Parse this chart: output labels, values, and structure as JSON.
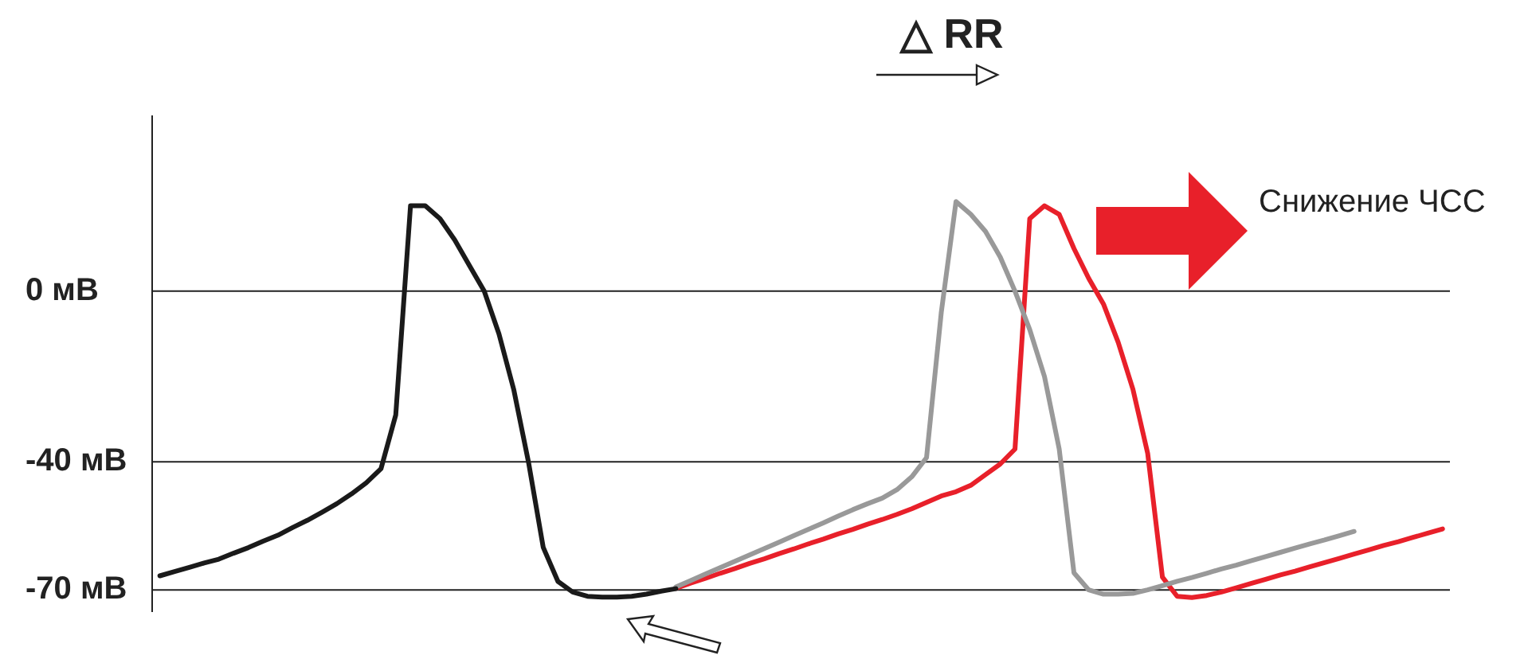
{
  "chart_data": {
    "type": "line",
    "categories": [
      null,
      null,
      null,
      null,
      null,
      null,
      null,
      null,
      null,
      null,
      null,
      null,
      null,
      null,
      null,
      null,
      null,
      null,
      null,
      null,
      null,
      null,
      null,
      null,
      null,
      null,
      null,
      null,
      null,
      null,
      null,
      null,
      null,
      null,
      null,
      null,
      null,
      null,
      null,
      null,
      null,
      null,
      null,
      null,
      null,
      null,
      null,
      null,
      null,
      null,
      null,
      null,
      null,
      null,
      null,
      null,
      null,
      null,
      null,
      null,
      null,
      null,
      null,
      null,
      null,
      null,
      null,
      null,
      null,
      null,
      null,
      null,
      null,
      null,
      null,
      null,
      null,
      null,
      null,
      null,
      null,
      null,
      null,
      null,
      null,
      null,
      null,
      null
    ],
    "series": [
      {
        "color": "#1a1a1a",
        "values": [
          -66.7,
          -65.7,
          -64.7,
          -63.7,
          -62.8,
          -61.4,
          -60.1,
          -58.6,
          -57.2,
          -55.4,
          -53.7,
          -51.8,
          -49.8,
          -47.5,
          -44.9,
          -41.6,
          -29,
          20,
          20,
          17,
          12,
          6,
          0,
          -10,
          -23,
          -40,
          -60,
          -68,
          -70.5,
          -71.5,
          -71.7,
          -71.7,
          -71.5,
          -71,
          -70.3,
          -69.7,
          null,
          null,
          null,
          null,
          null,
          null,
          null,
          null,
          null,
          null,
          null,
          null,
          null,
          null,
          null,
          null,
          null,
          null,
          null,
          null,
          null,
          null,
          null,
          null,
          null,
          null,
          null,
          null,
          null,
          null,
          null,
          null,
          null,
          null,
          null,
          null,
          null,
          null,
          null,
          null,
          null,
          null,
          null,
          null,
          null,
          null,
          null,
          null,
          null,
          null,
          null,
          null
        ]
      },
      {
        "color": "#999999",
        "values": [
          null,
          null,
          null,
          null,
          null,
          null,
          null,
          null,
          null,
          null,
          null,
          null,
          null,
          null,
          null,
          null,
          null,
          null,
          null,
          null,
          null,
          null,
          null,
          null,
          null,
          null,
          null,
          null,
          null,
          null,
          null,
          null,
          null,
          null,
          null,
          -69.3,
          -67.8,
          -66.3,
          -64.8,
          -63.3,
          -61.8,
          -60.3,
          -58.8,
          -57.3,
          -55.8,
          -54.3,
          -52.7,
          -51.2,
          -49.8,
          -48.5,
          -46.5,
          -43.5,
          -39,
          -5,
          21,
          18,
          14,
          8,
          0,
          -9,
          -20,
          -37,
          -66,
          -70,
          -71,
          -71,
          -70.8,
          -70,
          -69,
          -68,
          -67.1,
          -66.1,
          -65.1,
          -64.2,
          -63.2,
          -62.2,
          -61.2,
          -60.2,
          -59.2,
          -58.3,
          -57.3,
          -56.3,
          null,
          null,
          null,
          null,
          null,
          null
        ]
      },
      {
        "color": "#e8202a",
        "values": [
          null,
          null,
          null,
          null,
          null,
          null,
          null,
          null,
          null,
          null,
          null,
          null,
          null,
          null,
          null,
          null,
          null,
          null,
          null,
          null,
          null,
          null,
          null,
          null,
          null,
          null,
          null,
          null,
          null,
          null,
          null,
          null,
          null,
          null,
          null,
          -69.6,
          -68.4,
          -67.3,
          -66.1,
          -65,
          -63.8,
          -62.7,
          -61.5,
          -60.4,
          -59.2,
          -58.1,
          -56.9,
          -55.8,
          -54.6,
          -53.5,
          -52.3,
          -51,
          -49.5,
          -48,
          -47,
          -45.5,
          -43,
          -40.5,
          -37,
          17,
          20,
          18,
          10,
          3,
          -3,
          -12,
          -23,
          -38,
          -67,
          -71.5,
          -71.8,
          -71.3,
          -70.5,
          -69.5,
          -68.5,
          -67.5,
          -66.5,
          -65.6,
          -64.6,
          -63.6,
          -62.6,
          -61.6,
          -60.6,
          -59.6,
          -58.7,
          -57.7,
          -56.7,
          -55.7
        ]
      }
    ],
    "ylim": [
      -75,
      41
    ],
    "yticks": [
      {
        "value": 0,
        "label": "0 мВ"
      },
      {
        "value": -40,
        "label": "-40 мВ"
      },
      {
        "value": -70,
        "label": "-70 мВ"
      }
    ],
    "ref_lines": [
      {
        "axis": "y",
        "value": 0
      },
      {
        "axis": "y",
        "value": -40
      },
      {
        "axis": "y",
        "value": -70
      }
    ],
    "annotations": [
      "△ RR",
      "Снижение ЧСС"
    ],
    "tick_labels": "y",
    "grid": false,
    "legend": false,
    "marker": "none",
    "line_style": "solid"
  }
}
